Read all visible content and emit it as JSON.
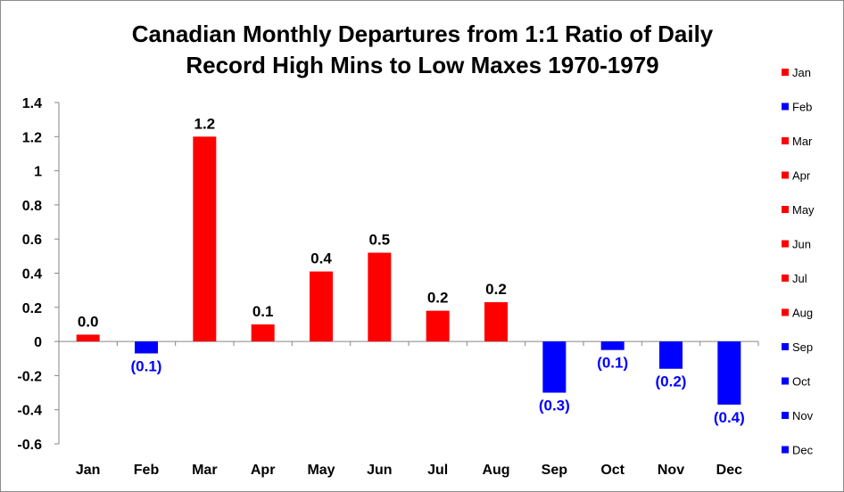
{
  "chart_data": {
    "type": "bar",
    "title": "Canadian Monthly Departures from 1:1 Ratio of Daily\nRecord High Mins to Low Maxes 1970-1979",
    "categories": [
      "Jan",
      "Feb",
      "Mar",
      "Apr",
      "May",
      "Jun",
      "Jul",
      "Aug",
      "Sep",
      "Oct",
      "Nov",
      "Dec"
    ],
    "values": [
      0.04,
      -0.07,
      1.2,
      0.1,
      0.41,
      0.52,
      0.18,
      0.23,
      -0.3,
      -0.05,
      -0.16,
      -0.37
    ],
    "data_labels": [
      "0.0",
      "(0.1)",
      "1.2",
      "0.1",
      "0.4",
      "0.5",
      "0.2",
      "0.2",
      "(0.3)",
      "(0.1)",
      "(0.2)",
      "(0.4)"
    ],
    "bar_colors": [
      "#ff0000",
      "#0000ff",
      "#ff0000",
      "#ff0000",
      "#ff0000",
      "#ff0000",
      "#ff0000",
      "#ff0000",
      "#0000ff",
      "#0000ff",
      "#0000ff",
      "#0000ff"
    ],
    "positive_color": "#ff0000",
    "negative_color": "#0000ff",
    "ylim": [
      -0.6,
      1.4
    ],
    "yticks": [
      1.4,
      1.2,
      1,
      0.8,
      0.6,
      0.4,
      0.2,
      0,
      -0.2,
      -0.4,
      -0.6
    ],
    "ytick_labels": [
      "1.4",
      "1.2",
      "1",
      "0.8",
      "0.6",
      "0.4",
      "0.2",
      "0",
      "-0.2",
      "-0.4",
      "-0.6"
    ],
    "xlabel": "",
    "ylabel": "",
    "grid": false,
    "legend": {
      "placement": "right",
      "entries": [
        "Jan",
        "Feb",
        "Mar",
        "Apr",
        "May",
        "Jun",
        "Jul",
        "Aug",
        "Sep",
        "Oct",
        "Nov",
        "Dec"
      ]
    }
  }
}
